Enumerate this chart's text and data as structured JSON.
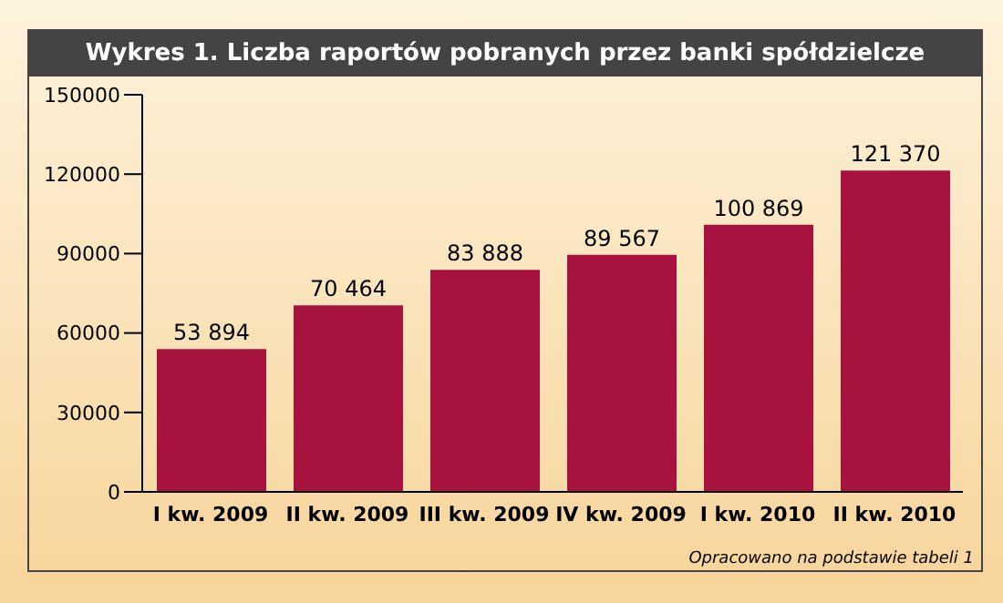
{
  "chart_data": {
    "type": "bar",
    "title": "Wykres 1. Liczba raportów pobranych przez banki spółdzielcze",
    "categories": [
      "I kw. 2009",
      "II kw. 2009",
      "III kw. 2009",
      "IV kw. 2009",
      "I kw. 2010",
      "II kw. 2010"
    ],
    "values": [
      53894,
      70464,
      83888,
      89567,
      100869,
      121370
    ],
    "value_labels": [
      "53 894",
      "70 464",
      "83 888",
      "89 567",
      "100 869",
      "121 370"
    ],
    "color": "#a8123f",
    "ylim": [
      0,
      150000
    ],
    "yticks": [
      0,
      30000,
      60000,
      90000,
      120000,
      150000
    ],
    "grid": false,
    "annotations": [
      "Opracowano na podstawie tabeli 1"
    ]
  }
}
